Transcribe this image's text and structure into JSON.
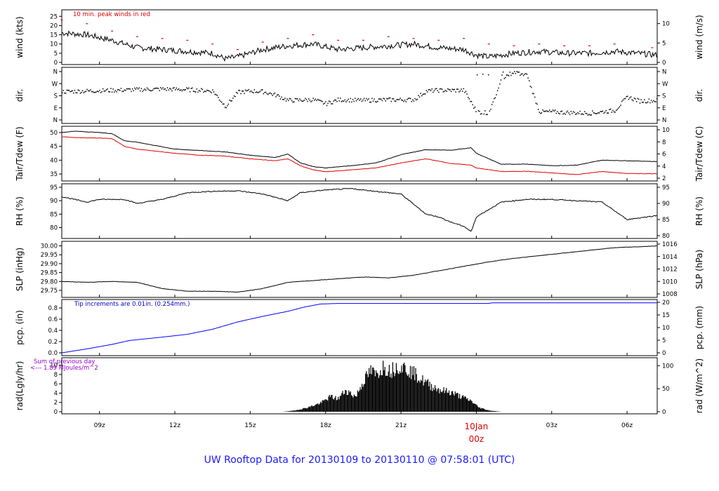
{
  "title": "UW Rooftop Data for 20130109  to  20130110 @ 07:58:01  (UTC)",
  "chart_data": {
    "type": "line",
    "x_ticks": [
      "09z",
      "12z",
      "15z",
      "18z",
      "21z",
      "03z",
      "06z"
    ],
    "date_marker": {
      "date": "10Jan",
      "hour": "00z",
      "color": "#dd0000"
    },
    "panels": [
      {
        "id": "wind",
        "type": "line",
        "ylabel_left": "wind (kts)",
        "ylabel_right": "wind (m/s)",
        "ylim": [
          0,
          27
        ],
        "yticks_left": [
          0,
          5,
          10,
          15,
          20,
          25
        ],
        "yticks_right": [
          "0",
          "5",
          "10"
        ],
        "annotation": "10 min. peak winds in red",
        "series": [
          {
            "color": "#000000",
            "x": [
              7.5,
              8.5,
              9.5,
              10.5,
              11.5,
              12.5,
              13.5,
              14,
              14.5,
              15.5,
              16.5,
              17.5,
              18.5,
              19.5,
              20.5,
              21.5,
              22.5,
              23.5,
              24,
              24.5,
              25.5,
              26.5,
              27.5,
              28.5,
              29.5,
              31.2
            ],
            "y": [
              16,
              15,
              12,
              8,
              7,
              6,
              5,
              2,
              3,
              7,
              9,
              10,
              7,
              8,
              9,
              10,
              8,
              7,
              4,
              3,
              5,
              6,
              5,
              5,
              6,
              4
            ]
          },
          {
            "name": "10 min. peak winds",
            "color": "#dd0000",
            "x": [
              7.5,
              8.5,
              9.5,
              10.5,
              11.5,
              12.5,
              13.5,
              14.5,
              15.5,
              16.5,
              17.5,
              18.5,
              19.5,
              20.5,
              21.5,
              22.5,
              23.5,
              24.5,
              25.5,
              26.5,
              27.5,
              28.5,
              29.5,
              31
            ],
            "y": [
              23,
              21,
              17,
              14,
              13,
              12,
              10,
              7,
              11,
              13,
              15,
              12,
              12,
              14,
              13,
              12,
              13,
              10,
              9,
              10,
              9,
              9,
              10,
              8
            ]
          }
        ]
      },
      {
        "id": "dir",
        "type": "scatter",
        "ylabel_left": "dir.",
        "ylabel_right": "dir.",
        "ylim": [
          0,
          360
        ],
        "ytick_values": [
          0,
          90,
          180,
          270,
          360
        ],
        "yticks_left": [
          "N",
          "E",
          "S",
          "W",
          "N"
        ],
        "yticks_right": [
          "N",
          "E",
          "S",
          "W",
          "N"
        ],
        "series": [
          {
            "color": "#000000",
            "x": [
              7.5,
              8.5,
              9.5,
              10.5,
              11.5,
              12.5,
              13.5,
              14,
              14.5,
              15,
              15.5,
              16,
              16.5,
              17.5,
              18,
              18.5,
              19.5,
              20.5,
              21.5,
              22,
              22.5,
              23,
              23.5,
              24,
              24.5,
              25,
              25.5,
              26,
              26.5,
              27,
              27.5,
              28.5,
              29,
              29.5,
              30,
              30.5,
              31.2
            ],
            "y": [
              210,
              215,
              220,
              225,
              230,
              225,
              215,
              100,
              205,
              215,
              210,
              185,
              145,
              150,
              120,
              150,
              145,
              150,
              150,
              215,
              220,
              220,
              220,
              60,
              50,
              310,
              360,
              330,
              60,
              60,
              55,
              50,
              60,
              70,
              170,
              140,
              145
            ]
          }
        ]
      },
      {
        "id": "temp",
        "type": "line",
        "ylabel_left": "Tair/Tdew (F)",
        "ylabel_right": "Tair/Tdew (C)",
        "ylim": [
          33.5,
          51
        ],
        "yticks_left": [
          35,
          40,
          45,
          50
        ],
        "yticks_right": [
          "2",
          "4",
          "6",
          "8",
          "10"
        ],
        "series": [
          {
            "name": "Tair",
            "color": "#000000",
            "x": [
              7.5,
              8,
              9,
              9.5,
              10,
              10.5,
              12,
              13,
              14,
              15,
              16,
              16.5,
              17,
              17.5,
              18,
              19,
              20,
              21,
              22,
              23,
              23.8,
              24,
              25,
              26,
              27,
              28,
              29,
              30,
              31.2
            ],
            "y": [
              50,
              50.5,
              50,
              49.6,
              47,
              46.5,
              44,
              43.5,
              43,
              41.8,
              41,
              42.2,
              39,
              37.7,
              37.2,
              38,
              39,
              42,
              43.8,
              43.6,
              44.5,
              42.5,
              38.5,
              38.6,
              38,
              38.2,
              40,
              39.8,
              39.5
            ]
          },
          {
            "name": "Tdew",
            "color": "#dd0000",
            "x": [
              7.5,
              8,
              9,
              9.5,
              10,
              10.5,
              12,
              13,
              14,
              15,
              16,
              16.5,
              17,
              17.5,
              18,
              19,
              20,
              21,
              22,
              23,
              23.8,
              24,
              25,
              26,
              27,
              28,
              29,
              30,
              31.2
            ],
            "y": [
              48.5,
              48.2,
              48,
              47.8,
              45,
              44,
              42.5,
              41.8,
              41.5,
              40.5,
              39.8,
              40.5,
              38,
              36.5,
              35.8,
              36.5,
              37.2,
              39,
              40.5,
              38.8,
              38.2,
              37.2,
              35.9,
              36,
              35.4,
              34.8,
              35.9,
              35.2,
              35.1
            ]
          }
        ]
      },
      {
        "id": "rh",
        "type": "line",
        "ylabel_left": "RH (%)",
        "ylabel_right": "RH (%)",
        "ylim": [
          77,
          95
        ],
        "yticks_left": [
          80,
          85,
          90,
          95
        ],
        "yticks_right": [
          "80",
          "85",
          "90",
          "95"
        ],
        "series": [
          {
            "color": "#000000",
            "x": [
              7.5,
              8.5,
              9,
              10,
              10.5,
              11.5,
              12.5,
              13.5,
              14.5,
              15.5,
              16.5,
              17,
              18,
              19,
              20,
              21,
              22,
              22.5,
              23,
              23.5,
              23.8,
              24,
              25,
              26,
              27,
              28,
              29,
              30,
              31.2
            ],
            "y": [
              91.5,
              89.5,
              90.5,
              90.5,
              89,
              90.5,
              93,
              93.5,
              93.7,
              92.5,
              90,
              93,
              94,
              94.5,
              93.5,
              92.5,
              85,
              84,
              82,
              80.5,
              78.5,
              84,
              89.5,
              90.5,
              90.5,
              90,
              89.5,
              83,
              84.5
            ]
          }
        ]
      },
      {
        "id": "slp",
        "type": "line",
        "ylabel_left": "SLP (inHg)",
        "ylabel_right": "SLP (hPa)",
        "ylim": [
          29.73,
          30.01
        ],
        "yticks_left": [
          "29.75",
          "29.80",
          "29.85",
          "29.90",
          "29.95",
          "30.00"
        ],
        "ytick_values": [
          29.75,
          29.8,
          29.85,
          29.9,
          29.95,
          30.0
        ],
        "yticks_right": [
          "1008",
          "1010",
          "1012",
          "1014",
          "1016"
        ],
        "series": [
          {
            "color": "#000000",
            "x": [
              7.5,
              8.5,
              9.5,
              10.5,
              11.5,
              12.5,
              13.5,
              14.5,
              15.5,
              16.5,
              17.5,
              18.5,
              19.5,
              20.5,
              21.5,
              22.5,
              23.5,
              24.5,
              25.5,
              26.5,
              27.5,
              28.5,
              29.5,
              30.5,
              31.2
            ],
            "y": [
              29.8,
              29.795,
              29.8,
              29.795,
              29.76,
              29.745,
              29.745,
              29.74,
              29.76,
              29.795,
              29.805,
              29.815,
              29.825,
              29.82,
              29.835,
              29.86,
              29.885,
              29.91,
              29.93,
              29.945,
              29.96,
              29.975,
              29.99,
              29.995,
              30.0
            ]
          }
        ]
      },
      {
        "id": "pcp",
        "type": "line",
        "ylabel_left": "pcp. (in)",
        "ylabel_right": "pcp. (mm)",
        "ylim": [
          0,
          0.9
        ],
        "yticks_left": [
          "0.0",
          "0.2",
          "0.4",
          "0.6",
          "0.8"
        ],
        "ytick_values": [
          0,
          0.2,
          0.4,
          0.6,
          0.8
        ],
        "yticks_right": [
          "0",
          "5",
          "10",
          "15",
          "20"
        ],
        "annotation": "Tip increments are 0.01in. (0.254mm.)",
        "series": [
          {
            "color": "#0000ff",
            "x": [
              7.5,
              8.5,
              9.5,
              10.2,
              11.5,
              12.5,
              13.5,
              14.5,
              15.5,
              16.5,
              17.2,
              17.8,
              18.5,
              20.5,
              24.5,
              24.6,
              31.2
            ],
            "y": [
              0,
              0.07,
              0.15,
              0.22,
              0.28,
              0.33,
              0.42,
              0.55,
              0.65,
              0.74,
              0.82,
              0.87,
              0.88,
              0.88,
              0.88,
              0.89,
              0.89
            ]
          }
        ]
      },
      {
        "id": "rad",
        "type": "area",
        "ylabel_left": "rad(Lgly/hr)",
        "ylabel_right": "rad (W/m^2)",
        "ylim": [
          0,
          11
        ],
        "yticks_left": [
          "0",
          "2",
          "4",
          "6",
          "8",
          "10"
        ],
        "ytick_values": [
          0,
          2,
          4,
          6,
          8,
          10
        ],
        "yticks_right": [
          "0",
          "50",
          "100"
        ],
        "annotation_lines": [
          "Sum of previous day",
          "<--- 1.89 MJoules/m^2"
        ],
        "series": [
          {
            "color": "#000000",
            "x": [
              16.3,
              16.8,
              17.3,
              17.8,
              18.2,
              18.5,
              18.8,
              19.2,
              19.5,
              19.8,
              20,
              20.3,
              20.6,
              20.9,
              21.2,
              21.5,
              21.8,
              22.2,
              22.6,
              23,
              23.4,
              23.8,
              24.1,
              24.5,
              25
            ],
            "y": [
              0,
              0.3,
              1,
              2,
              3.5,
              3,
              5,
              3.5,
              7,
              9.5,
              8.5,
              10.5,
              9.5,
              10.8,
              10,
              9,
              7.5,
              6,
              5,
              4.5,
              3.5,
              2.5,
              1,
              0.3,
              0
            ]
          }
        ]
      }
    ]
  }
}
